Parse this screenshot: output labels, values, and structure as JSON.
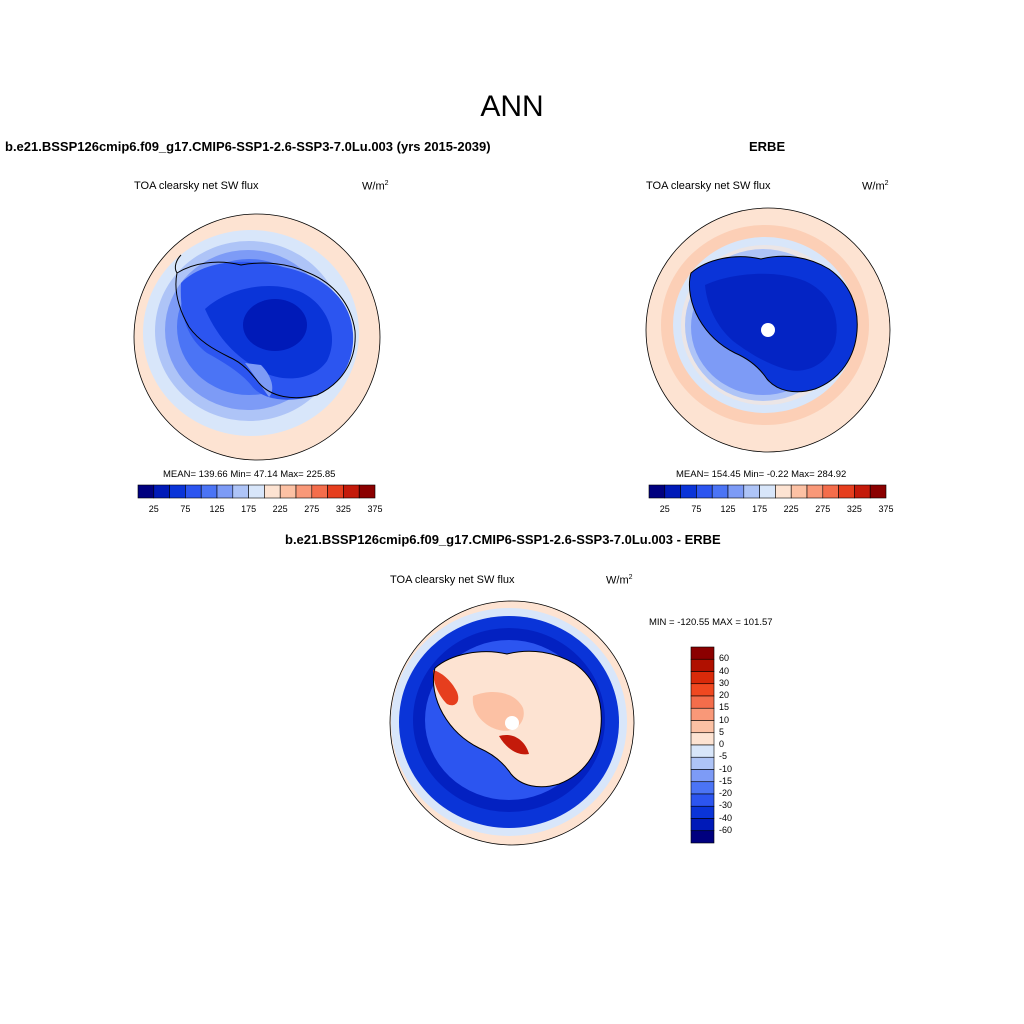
{
  "figure": {
    "title": "ANN"
  },
  "colors": {
    "model_scale": [
      "#00007f",
      "#001ab8",
      "#0a34d8",
      "#2c55f0",
      "#4b74f5",
      "#7d9bf6",
      "#aec4f7",
      "#d8e6fa",
      "#fde3d2",
      "#fcc1a4",
      "#f99878",
      "#f46d4b",
      "#e63e1e",
      "#c41a0a",
      "#8b0000"
    ],
    "diff_scale": [
      "#00007f",
      "#001ab8",
      "#0a34d8",
      "#2c55f0",
      "#4b74f5",
      "#7d9bf6",
      "#aec4f7",
      "#d8e6fa",
      "#fde3d2",
      "#fcc1a4",
      "#f99878",
      "#f46d4b",
      "#f04820",
      "#d92a0a",
      "#b01000",
      "#8b0000"
    ]
  },
  "panels": {
    "model": {
      "title": "b.e21.BSSP126cmip6.f09_g17.CMIP6-SSP1-2.6-SSP3-7.0Lu.003 (yrs 2015-2039)",
      "variable": "TOA clearsky net SW flux",
      "units_base": "W/m",
      "units_exp": "2",
      "stats": "MEAN= 139.66  Min=  47.14  Max= 225.85",
      "ticks": [
        "25",
        "75",
        "125",
        "175",
        "225",
        "275",
        "325",
        "375"
      ]
    },
    "obs": {
      "title": "ERBE",
      "variable": "TOA clearsky net SW flux",
      "units_base": "W/m",
      "units_exp": "2",
      "stats": "MEAN= 154.45  Min=  -0.22  Max= 284.92",
      "ticks": [
        "25",
        "75",
        "125",
        "175",
        "225",
        "275",
        "325",
        "375"
      ]
    },
    "diff": {
      "title": "b.e21.BSSP126cmip6.f09_g17.CMIP6-SSP1-2.6-SSP3-7.0Lu.003 - ERBE",
      "variable": "TOA clearsky net SW flux",
      "units_base": "W/m",
      "units_exp": "2",
      "stats": "MIN = -120.55 MAX = 101.57",
      "levels": [
        "60",
        "40",
        "30",
        "20",
        "15",
        "10",
        "5",
        "0",
        "-5",
        "-10",
        "-15",
        "-20",
        "-30",
        "-40",
        "-60"
      ]
    }
  }
}
